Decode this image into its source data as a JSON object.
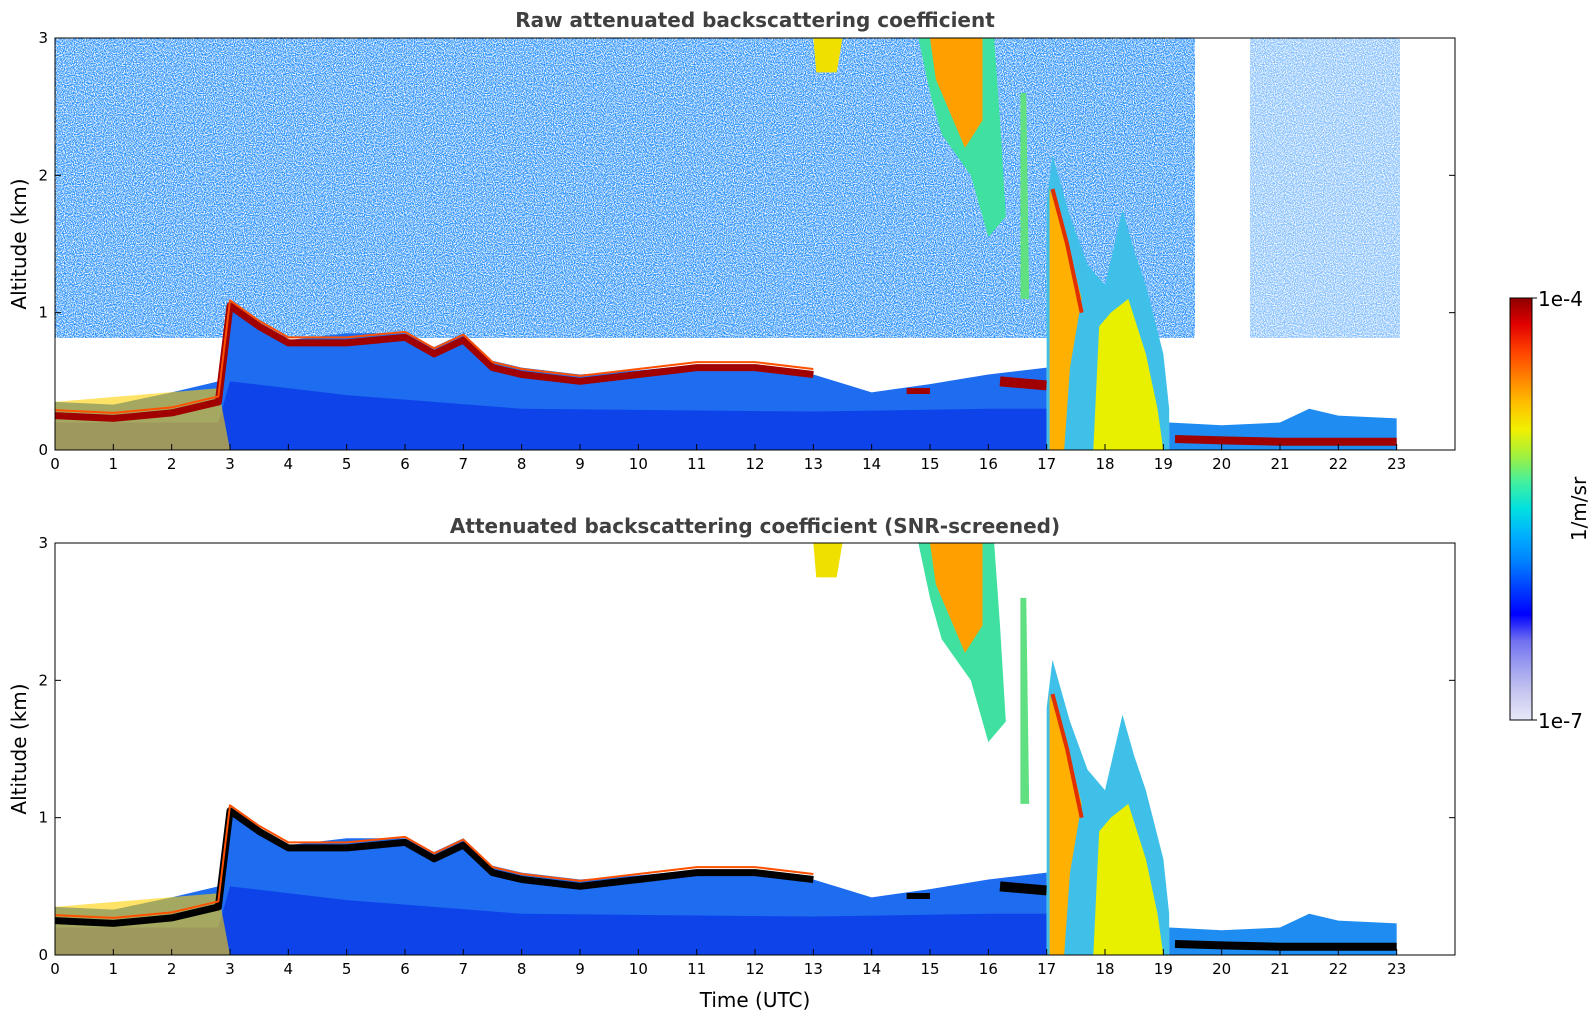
{
  "chart_data": [
    {
      "type": "heatmap",
      "title": "Raw attenuated backscattering coefficient",
      "xlabel": "",
      "ylabel": "Altitude (km)",
      "xlim": [
        0,
        24
      ],
      "ylim": [
        0,
        3
      ],
      "xticks": [
        "0",
        "1",
        "2",
        "3",
        "4",
        "5",
        "6",
        "7",
        "8",
        "9",
        "10",
        "11",
        "12",
        "13",
        "14",
        "15",
        "16",
        "17",
        "18",
        "19",
        "20",
        "21",
        "22",
        "23"
      ],
      "yticks": [
        "0",
        "1",
        "2",
        "3"
      ],
      "screened": false,
      "data_end_time": 23,
      "layers": [
        {
          "feature": "boundary-layer top (strong aerosol)",
          "x": [
            0,
            1,
            2,
            2.8,
            3,
            4,
            5,
            6,
            7,
            8,
            9,
            10,
            11,
            12,
            13
          ],
          "y": [
            0.25,
            0.25,
            0.25,
            0.35,
            1.0,
            0.75,
            0.75,
            0.8,
            0.65,
            0.55,
            0.5,
            0.55,
            0.6,
            0.6,
            0.55
          ]
        },
        {
          "feature": "cloud",
          "x": [
            15,
            15.5,
            16
          ],
          "y": [
            2.8,
            2.5,
            1.8
          ]
        },
        {
          "feature": "cloud",
          "x": [
            17,
            17.5,
            18,
            18.5,
            19
          ],
          "y": [
            2.0,
            1.3,
            1.1,
            1.6,
            0.4
          ]
        },
        {
          "feature": "surface layer",
          "x": [
            19.2,
            20,
            21,
            22,
            23
          ],
          "y": [
            0.08,
            0.07,
            0.06,
            0.06,
            0.06
          ]
        }
      ],
      "grid": false
    },
    {
      "type": "heatmap",
      "title": "Attenuated backscattering coefficient (SNR-screened)",
      "xlabel": "Time (UTC)",
      "ylabel": "Altitude (km)",
      "xlim": [
        0,
        24
      ],
      "ylim": [
        0,
        3
      ],
      "xticks": [
        "0",
        "1",
        "2",
        "3",
        "4",
        "5",
        "6",
        "7",
        "8",
        "9",
        "10",
        "11",
        "12",
        "13",
        "14",
        "15",
        "16",
        "17",
        "18",
        "19",
        "20",
        "21",
        "22",
        "23"
      ],
      "yticks": [
        "0",
        "1",
        "2",
        "3"
      ],
      "screened": true,
      "data_end_time": 23,
      "grid": false
    }
  ],
  "colorbar": {
    "label": "1/m/sr",
    "max_label": "1e-4",
    "min_label": "1e-7",
    "scale": "log",
    "colormap": [
      "#e8e8f8",
      "#c8c8f0",
      "#a0a0f0",
      "#7070f0",
      "#0000ff",
      "#0040ff",
      "#0080ff",
      "#00b0ff",
      "#00e0e0",
      "#40f0a0",
      "#a0f040",
      "#f0f000",
      "#ffc000",
      "#ff8000",
      "#ff4000",
      "#e00000",
      "#900000"
    ]
  }
}
